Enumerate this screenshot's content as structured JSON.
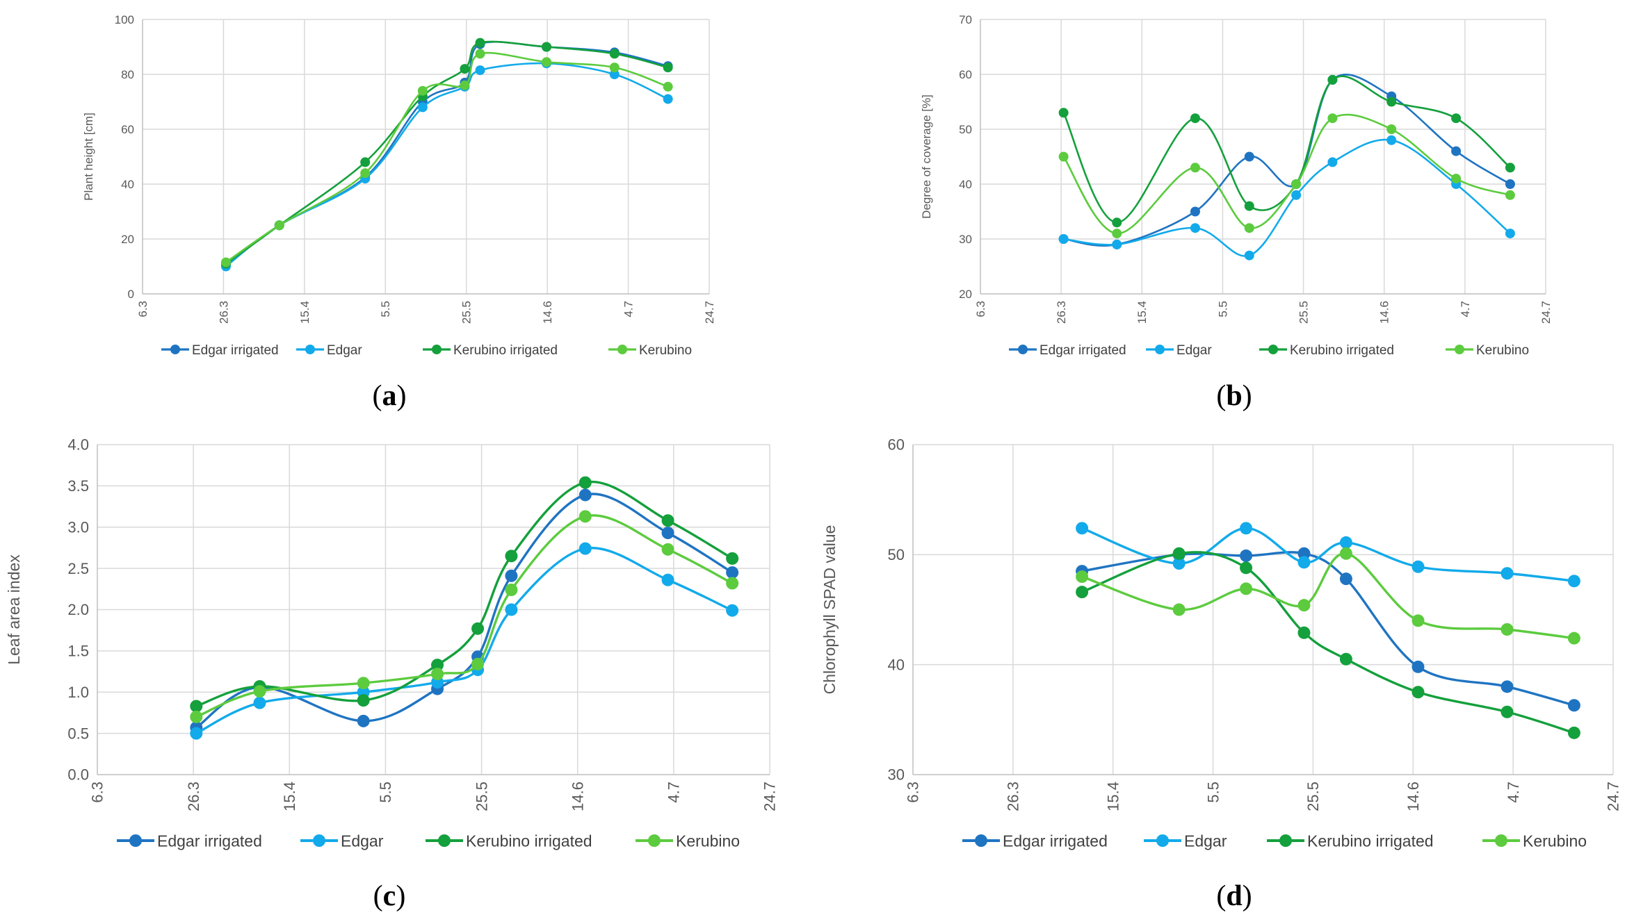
{
  "colors": {
    "Edgar irrigated": "#1f74c2",
    "Edgar": "#12aaea",
    "Kerubino irrigated": "#14a03c",
    "Kerubino": "#5ccb3e"
  },
  "chart_data": [
    {
      "type": "line",
      "panel_label": "(a)",
      "ylabel": "Plant height [cm]",
      "xlabel": "",
      "x_tick_labels": [
        "6.3",
        "26.3",
        "15.4",
        "5.5",
        "25.5",
        "14.6",
        "4.7",
        "24.7"
      ],
      "ylim": [
        0,
        100
      ],
      "y_ticks": [
        0,
        20,
        40,
        60,
        80,
        100
      ],
      "grid": true,
      "legend": "bottom",
      "series": [
        {
          "name": "Edgar irrigated",
          "points": [
            [
              1.03,
              10.5
            ],
            [
              1.69,
              25
            ],
            [
              2.75,
              42.5
            ],
            [
              3.46,
              70
            ],
            [
              3.98,
              77
            ],
            [
              4.17,
              91
            ],
            [
              4.99,
              90
            ],
            [
              5.83,
              88
            ],
            [
              6.49,
              83
            ]
          ]
        },
        {
          "name": "Edgar",
          "points": [
            [
              1.03,
              10
            ],
            [
              1.69,
              25
            ],
            [
              2.75,
              42
            ],
            [
              3.46,
              68
            ],
            [
              3.98,
              75.5
            ],
            [
              4.17,
              81.5
            ],
            [
              4.99,
              84
            ],
            [
              5.83,
              80
            ],
            [
              6.49,
              71
            ]
          ]
        },
        {
          "name": "Kerubino irrigated",
          "points": [
            [
              1.03,
              11
            ],
            [
              1.69,
              25
            ],
            [
              2.75,
              48
            ],
            [
              3.46,
              72
            ],
            [
              3.98,
              82
            ],
            [
              4.17,
              91.5
            ],
            [
              4.99,
              90
            ],
            [
              5.83,
              87.5
            ],
            [
              6.49,
              82.5
            ]
          ]
        },
        {
          "name": "Kerubino",
          "points": [
            [
              1.03,
              11.5
            ],
            [
              1.69,
              25
            ],
            [
              2.75,
              44
            ],
            [
              3.46,
              74
            ],
            [
              3.98,
              76
            ],
            [
              4.17,
              87.5
            ],
            [
              4.99,
              84.5
            ],
            [
              5.83,
              82.5
            ],
            [
              6.49,
              75.5
            ]
          ]
        }
      ]
    },
    {
      "type": "line",
      "panel_label": "(b)",
      "ylabel": "Degree of coverage [%]",
      "xlabel": "",
      "x_tick_labels": [
        "6.3",
        "26.3",
        "15.4",
        "5.5",
        "25.5",
        "14.6",
        "4.7",
        "24.7"
      ],
      "ylim": [
        20,
        70
      ],
      "y_ticks": [
        20,
        30,
        40,
        50,
        60,
        70
      ],
      "grid": true,
      "legend": "bottom",
      "series": [
        {
          "name": "Edgar irrigated",
          "points": [
            [
              1.03,
              30
            ],
            [
              1.69,
              29
            ],
            [
              2.66,
              35
            ],
            [
              3.33,
              45
            ],
            [
              3.91,
              40
            ],
            [
              4.36,
              59
            ],
            [
              5.09,
              56
            ],
            [
              5.89,
              46
            ],
            [
              6.56,
              40
            ]
          ]
        },
        {
          "name": "Edgar",
          "points": [
            [
              1.03,
              30
            ],
            [
              1.69,
              29
            ],
            [
              2.66,
              32
            ],
            [
              3.33,
              27
            ],
            [
              3.91,
              38
            ],
            [
              4.36,
              44
            ],
            [
              5.09,
              48
            ],
            [
              5.89,
              40
            ],
            [
              6.56,
              31
            ]
          ]
        },
        {
          "name": "Kerubino irrigated",
          "points": [
            [
              1.03,
              53
            ],
            [
              1.69,
              33
            ],
            [
              2.66,
              52
            ],
            [
              3.33,
              36
            ],
            [
              3.91,
              40
            ],
            [
              4.36,
              59
            ],
            [
              5.09,
              55
            ],
            [
              5.89,
              52
            ],
            [
              6.56,
              43
            ]
          ]
        },
        {
          "name": "Kerubino",
          "points": [
            [
              1.03,
              45
            ],
            [
              1.69,
              31
            ],
            [
              2.66,
              43
            ],
            [
              3.33,
              32
            ],
            [
              3.91,
              40
            ],
            [
              4.36,
              52
            ],
            [
              5.09,
              50
            ],
            [
              5.89,
              41
            ],
            [
              6.56,
              38
            ]
          ]
        }
      ]
    },
    {
      "type": "line",
      "panel_label": "(c)",
      "ylabel": "Leaf area index",
      "xlabel": "",
      "x_tick_labels": [
        "6.3",
        "26.3",
        "15.4",
        "5.5",
        "25.5",
        "14.6",
        "4.7",
        "24.7"
      ],
      "y_tick_labels": [
        "0.0",
        "0.5",
        "1.0",
        "1.5",
        "2.0",
        "2.5",
        "3.0",
        "3.5",
        "4.0"
      ],
      "ylim": [
        0,
        4
      ],
      "y_ticks": [
        0,
        0.5,
        1,
        1.5,
        2,
        2.5,
        3,
        3.5,
        4
      ],
      "grid": true,
      "legend": "bottom",
      "series": [
        {
          "name": "Edgar irrigated",
          "points": [
            [
              1.03,
              0.57
            ],
            [
              1.69,
              1.06
            ],
            [
              2.77,
              0.65
            ],
            [
              3.54,
              1.04
            ],
            [
              3.96,
              1.43
            ],
            [
              4.31,
              2.41
            ],
            [
              5.08,
              3.39
            ],
            [
              5.94,
              2.93
            ],
            [
              6.61,
              2.45
            ]
          ]
        },
        {
          "name": "Edgar",
          "points": [
            [
              1.03,
              0.5
            ],
            [
              1.69,
              0.87
            ],
            [
              2.77,
              1.0
            ],
            [
              3.54,
              1.12
            ],
            [
              3.96,
              1.27
            ],
            [
              4.31,
              2.0
            ],
            [
              5.08,
              2.74
            ],
            [
              5.94,
              2.36
            ],
            [
              6.61,
              1.99
            ]
          ]
        },
        {
          "name": "Kerubino irrigated",
          "points": [
            [
              1.03,
              0.83
            ],
            [
              1.69,
              1.07
            ],
            [
              2.77,
              0.9
            ],
            [
              3.54,
              1.33
            ],
            [
              3.96,
              1.77
            ],
            [
              4.31,
              2.65
            ],
            [
              5.08,
              3.54
            ],
            [
              5.94,
              3.08
            ],
            [
              6.61,
              2.62
            ]
          ]
        },
        {
          "name": "Kerubino",
          "points": [
            [
              1.03,
              0.7
            ],
            [
              1.69,
              1.01
            ],
            [
              2.77,
              1.11
            ],
            [
              3.54,
              1.22
            ],
            [
              3.96,
              1.34
            ],
            [
              4.31,
              2.24
            ],
            [
              5.08,
              3.13
            ],
            [
              5.94,
              2.73
            ],
            [
              6.61,
              2.32
            ]
          ]
        }
      ]
    },
    {
      "type": "line",
      "panel_label": "(d)",
      "ylabel": "Chlorophyll SPAD value",
      "xlabel": "",
      "x_tick_labels": [
        "6.3",
        "26.3",
        "15.4",
        "5.5",
        "25.5",
        "14.6",
        "4.7",
        "24.7"
      ],
      "ylim": [
        30,
        60
      ],
      "y_ticks": [
        30,
        40,
        50,
        60
      ],
      "grid": true,
      "legend": "bottom",
      "series": [
        {
          "name": "Edgar irrigated",
          "points": [
            [
              1.69,
              48.5
            ],
            [
              2.66,
              50
            ],
            [
              3.33,
              49.9
            ],
            [
              3.91,
              50.1
            ],
            [
              4.33,
              47.8
            ],
            [
              5.05,
              39.8
            ],
            [
              5.94,
              38
            ],
            [
              6.61,
              36.3
            ]
          ]
        },
        {
          "name": "Edgar",
          "points": [
            [
              1.69,
              52.4
            ],
            [
              2.66,
              49.2
            ],
            [
              3.33,
              52.4
            ],
            [
              3.91,
              49.3
            ],
            [
              4.33,
              51.1
            ],
            [
              5.05,
              48.9
            ],
            [
              5.94,
              48.3
            ],
            [
              6.61,
              47.6
            ]
          ]
        },
        {
          "name": "Kerubino irrigated",
          "points": [
            [
              1.69,
              46.6
            ],
            [
              2.66,
              50.1
            ],
            [
              3.33,
              48.8
            ],
            [
              3.91,
              42.9
            ],
            [
              4.33,
              40.5
            ],
            [
              5.05,
              37.5
            ],
            [
              5.94,
              35.7
            ],
            [
              6.61,
              33.8
            ]
          ]
        },
        {
          "name": "Kerubino",
          "points": [
            [
              1.69,
              48
            ],
            [
              2.66,
              45
            ],
            [
              3.33,
              46.9
            ],
            [
              3.91,
              45.4
            ],
            [
              4.33,
              50.1
            ],
            [
              5.05,
              44
            ],
            [
              5.94,
              43.2
            ],
            [
              6.61,
              42.4
            ]
          ]
        }
      ]
    }
  ]
}
